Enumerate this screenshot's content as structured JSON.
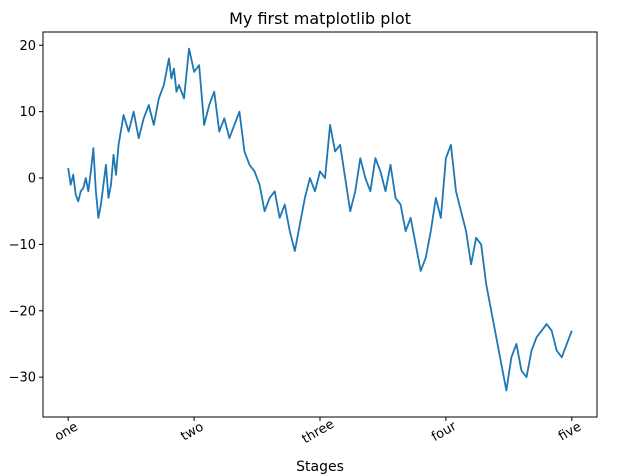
{
  "chart_data": {
    "type": "line",
    "title": "My first matplotlib plot",
    "xlabel": "Stages",
    "ylabel": "",
    "xlim": [
      -50,
      1050
    ],
    "ylim": [
      -36,
      22
    ],
    "xticks": [
      {
        "value": 0,
        "label": "one"
      },
      {
        "value": 250,
        "label": "two"
      },
      {
        "value": 500,
        "label": "three"
      },
      {
        "value": 750,
        "label": "four"
      },
      {
        "value": 1000,
        "label": "five"
      }
    ],
    "yticks": [
      {
        "value": 20,
        "label": "20"
      },
      {
        "value": 10,
        "label": "10"
      },
      {
        "value": 0,
        "label": "0"
      },
      {
        "value": -10,
        "label": "−10"
      },
      {
        "value": -20,
        "label": "−20"
      },
      {
        "value": -30,
        "label": "−30"
      }
    ],
    "grid": false,
    "series": [
      {
        "color": "#1f77b4",
        "x": [
          0,
          5,
          10,
          15,
          20,
          25,
          30,
          35,
          40,
          45,
          50,
          55,
          60,
          65,
          70,
          75,
          80,
          85,
          90,
          95,
          100,
          110,
          120,
          130,
          140,
          150,
          160,
          170,
          180,
          190,
          200,
          205,
          210,
          215,
          220,
          230,
          240,
          250,
          260,
          270,
          280,
          290,
          300,
          310,
          320,
          330,
          340,
          350,
          360,
          370,
          380,
          390,
          400,
          410,
          420,
          430,
          440,
          450,
          460,
          470,
          480,
          490,
          500,
          510,
          520,
          530,
          540,
          550,
          560,
          570,
          580,
          590,
          600,
          610,
          620,
          630,
          640,
          650,
          660,
          670,
          680,
          690,
          700,
          710,
          720,
          730,
          740,
          750,
          760,
          770,
          780,
          790,
          800,
          810,
          820,
          830,
          840,
          850,
          860,
          870,
          880,
          890,
          900,
          910,
          920,
          930,
          940,
          950,
          960,
          970,
          980,
          990,
          1000
        ],
        "y": [
          1.5,
          -1,
          0.5,
          -2.5,
          -3.5,
          -2,
          -1.5,
          0,
          -2,
          1,
          4.5,
          -2,
          -6,
          -4,
          -1,
          2,
          -3,
          -1,
          3.5,
          0.5,
          5,
          9.5,
          7,
          10,
          6,
          9,
          11,
          8,
          12,
          14,
          18,
          15,
          16.5,
          13,
          14,
          12,
          19.5,
          16,
          17,
          8,
          11,
          13,
          7,
          9,
          6,
          8,
          10,
          4,
          2,
          1,
          -1,
          -5,
          -3,
          -2,
          -6,
          -4,
          -8,
          -11,
          -7,
          -3,
          0,
          -2,
          1,
          0,
          8,
          4,
          5,
          0,
          -5,
          -2,
          3,
          0,
          -2,
          3,
          1,
          -2,
          2,
          -3,
          -4,
          -8,
          -6,
          -10,
          -14,
          -12,
          -8,
          -3,
          -6,
          3,
          5,
          -2,
          -5,
          -8,
          -13,
          -9,
          -10,
          -16,
          -20,
          -24,
          -28,
          -32,
          -27,
          -25,
          -29,
          -30,
          -26,
          -24,
          -23,
          -22,
          -23,
          -26,
          -27,
          -25,
          -23
        ]
      }
    ]
  }
}
